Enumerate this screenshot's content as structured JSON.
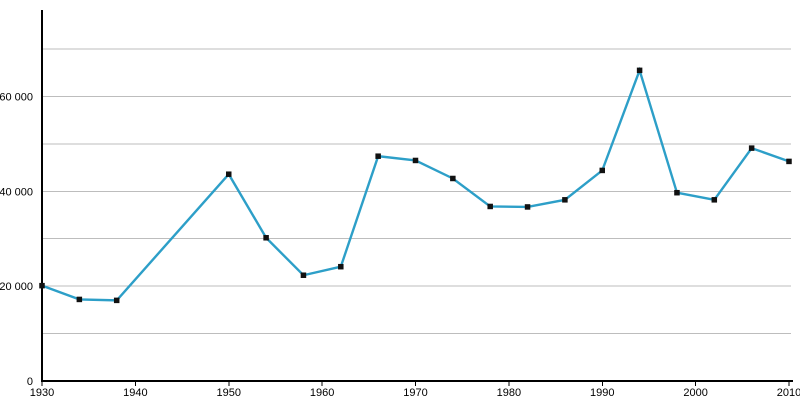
{
  "chart_data": {
    "type": "line",
    "title": "",
    "xlabel": "",
    "ylabel": "",
    "legend": "none",
    "grid": "horizontal",
    "x": [
      1930,
      1934,
      1938,
      1950,
      1954,
      1958,
      1962,
      1966,
      1970,
      1974,
      1978,
      1982,
      1986,
      1990,
      1994,
      1998,
      2002,
      2006,
      2010
    ],
    "values": [
      20100,
      17200,
      17000,
      43600,
      30200,
      22300,
      24100,
      47400,
      46500,
      42700,
      36800,
      36700,
      38200,
      44400,
      65500,
      39700,
      38200,
      49100,
      46300
    ],
    "xlim": [
      1930,
      2010
    ],
    "ylim": [
      0,
      78000
    ],
    "x_tick_values": [
      1930,
      1940,
      1950,
      1960,
      1970,
      1980,
      1990,
      2000,
      2010
    ],
    "x_tick_labels": [
      "1930",
      "1940",
      "1950",
      "1960",
      "1970",
      "1980",
      "1990",
      "2000",
      "2010"
    ],
    "y_tick_values": [
      0,
      20000,
      40000,
      60000
    ],
    "y_tick_labels": [
      "0",
      "20 000",
      "40 000",
      "60 000"
    ],
    "y_grid_values": [
      10000,
      20000,
      30000,
      40000,
      50000,
      60000,
      70000
    ],
    "marker_shape": "square",
    "colors": {
      "line": "#2D9FC8",
      "marker": "#111111",
      "grid": "#BDBDBD",
      "axis": "#000000",
      "text": "#000000",
      "background": "#FFFFFF"
    }
  }
}
